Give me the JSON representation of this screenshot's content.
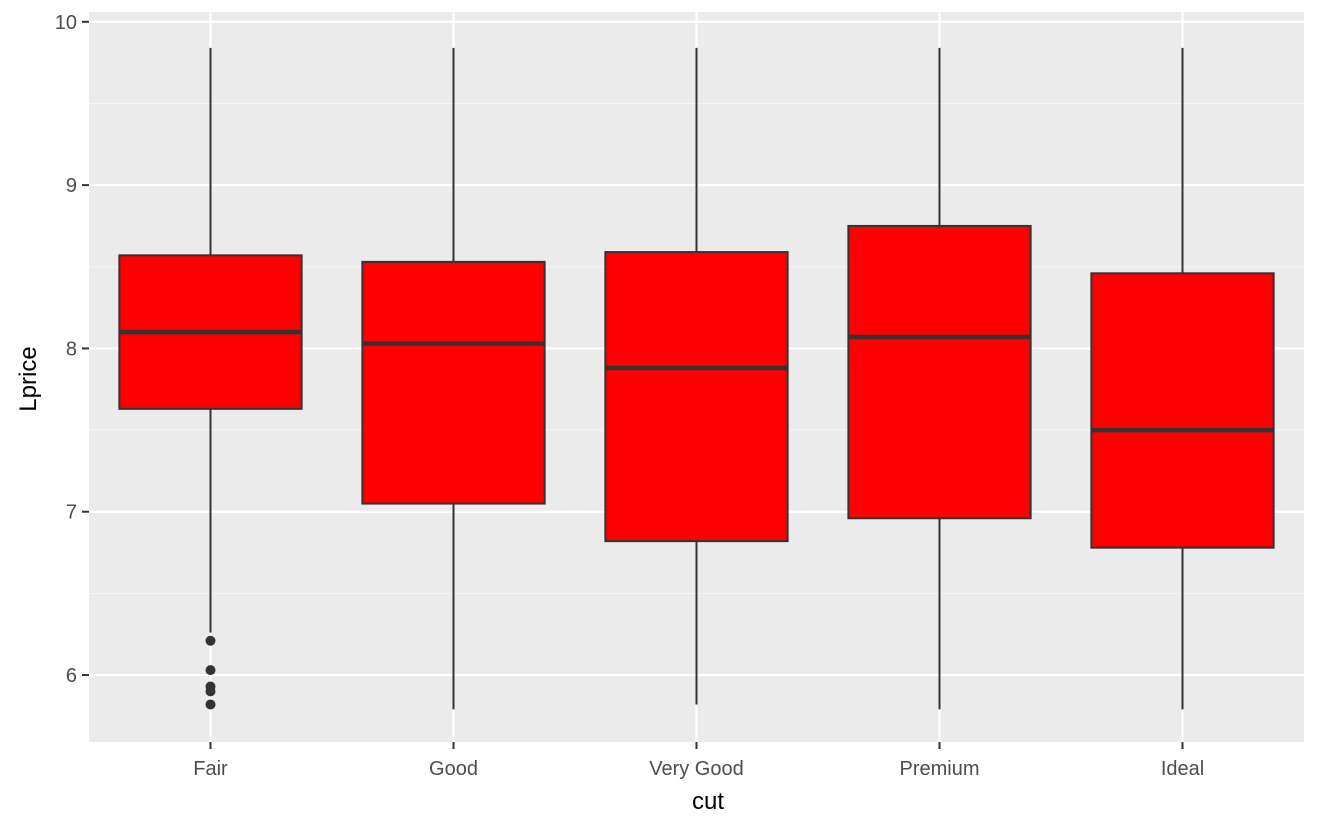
{
  "chart_data": {
    "type": "boxplot",
    "xlabel": "cut",
    "ylabel": "Lprice",
    "ylim": [
      5.59,
      10.06
    ],
    "y_ticks": [
      6,
      7,
      8,
      9,
      10
    ],
    "grid": true,
    "colors": {
      "panel_background": "#ebebeb",
      "grid_major": "#ffffff",
      "grid_minor": "#f6f6f6",
      "box_fill": "#ff0000",
      "box_outline": "#333333",
      "whisker": "#333333",
      "outlier": "#333333",
      "tick_text": "#4d4d4d",
      "axis_title": "#000000"
    },
    "categories": [
      "Fair",
      "Good",
      "Very Good",
      "Premium",
      "Ideal"
    ],
    "boxes": [
      {
        "category": "Fair",
        "lower_whisker": 6.26,
        "q1": 7.63,
        "median": 8.1,
        "q3": 8.57,
        "upper_whisker": 9.84,
        "outliers": [
          6.21,
          6.03,
          5.93,
          5.9,
          5.82
        ]
      },
      {
        "category": "Good",
        "lower_whisker": 5.79,
        "q1": 7.05,
        "median": 8.03,
        "q3": 8.53,
        "upper_whisker": 9.84,
        "outliers": []
      },
      {
        "category": "Very Good",
        "lower_whisker": 5.82,
        "q1": 6.82,
        "median": 7.88,
        "q3": 8.59,
        "upper_whisker": 9.84,
        "outliers": []
      },
      {
        "category": "Premium",
        "lower_whisker": 5.79,
        "q1": 6.96,
        "median": 8.07,
        "q3": 8.75,
        "upper_whisker": 9.84,
        "outliers": []
      },
      {
        "category": "Ideal",
        "lower_whisker": 5.79,
        "q1": 6.78,
        "median": 7.5,
        "q3": 8.46,
        "upper_whisker": 9.84,
        "outliers": []
      }
    ]
  }
}
